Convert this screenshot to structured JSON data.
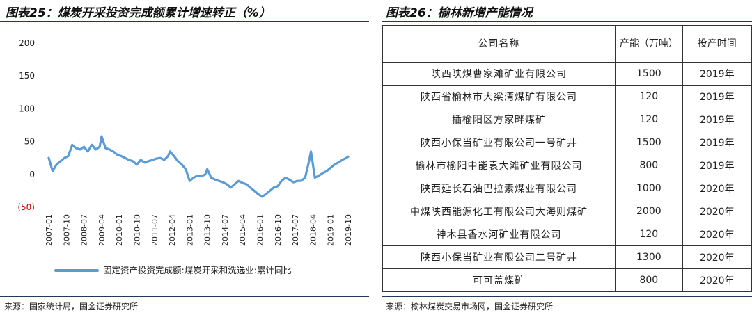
{
  "left_panel": {
    "title": "图表25：煤炭开采投资完成额累计增速转正（%）",
    "source": "来源：国家统计局，国金证券研究所"
  },
  "right_panel": {
    "title": "图表26：榆林新增产能情况",
    "source": "来源：榆林煤炭交易市场网，国金证券研究所",
    "headers": [
      "公司名称",
      "产能（万吨）",
      "投产时间"
    ],
    "rows": [
      {
        "company": "陕西陕煤曹家滩矿业有限公司",
        "capacity": "1500",
        "year": "2019年"
      },
      {
        "company": "陕西省榆林市大梁湾煤矿有限公司",
        "capacity": "120",
        "year": "2019年"
      },
      {
        "company": "插榆阳区方家畔煤矿",
        "capacity": "120",
        "year": "2019年"
      },
      {
        "company": "陕西小保当矿业有限公司一号矿井",
        "capacity": "1500",
        "year": "2019年"
      },
      {
        "company": "榆林市榆阳中能袁大滩矿业有限公司",
        "capacity": "800",
        "year": "2019年"
      },
      {
        "company": "陕西延长石油巴拉素煤业有限公司",
        "capacity": "1000",
        "year": "2020年"
      },
      {
        "company": "中煤陕西能源化工有限公司大海则煤矿",
        "capacity": "2000",
        "year": "2020年"
      },
      {
        "company": "神木县香水河矿业有限公司",
        "capacity": "120",
        "year": "2020年"
      },
      {
        "company": "陕西小保当矿业有限公司二号矿井",
        "capacity": "1300",
        "year": "2020年"
      },
      {
        "company": "可可盖煤矿",
        "capacity": "800",
        "year": "2020年"
      }
    ]
  },
  "chart_data": {
    "type": "line",
    "title": "",
    "xlabel": "",
    "ylabel": "",
    "ylim": [
      -50,
      200
    ],
    "y_ticks": [
      200,
      150,
      100,
      50,
      0,
      -50
    ],
    "y_tick_labels": [
      "200",
      "150",
      "100",
      "50",
      "0",
      "(50)"
    ],
    "x_tick_labels": [
      "2007-01",
      "2007-10",
      "2008-07",
      "2009-04",
      "2010-01",
      "2010-10",
      "2011-07",
      "2012-04",
      "2013-01",
      "2013-10",
      "2014-07",
      "2015-04",
      "2016-01",
      "2016-10",
      "2017-07",
      "2018-04",
      "2019-01",
      "2019-10"
    ],
    "x_start": "2007-01",
    "x_end": "2019-10",
    "grid": false,
    "legend_position": "bottom",
    "negative_label_color": "#c00000",
    "series_color": "#5b9bd5",
    "series": [
      {
        "name": "固定资产投资完成额:煤炭开采和洗选业:累计同比",
        "x": [
          "2007-01",
          "2007-03",
          "2007-05",
          "2007-07",
          "2007-09",
          "2007-11",
          "2008-01",
          "2008-03",
          "2008-05",
          "2008-07",
          "2008-09",
          "2008-11",
          "2009-01",
          "2009-03",
          "2009-04",
          "2009-06",
          "2009-08",
          "2009-10",
          "2009-12",
          "2010-02",
          "2010-04",
          "2010-06",
          "2010-08",
          "2010-10",
          "2010-12",
          "2011-02",
          "2011-04",
          "2011-06",
          "2011-08",
          "2011-10",
          "2011-12",
          "2012-02",
          "2012-03",
          "2012-05",
          "2012-07",
          "2012-09",
          "2012-11",
          "2013-01",
          "2013-03",
          "2013-05",
          "2013-07",
          "2013-09",
          "2013-10",
          "2013-12",
          "2014-02",
          "2014-04",
          "2014-06",
          "2014-08",
          "2014-10",
          "2014-12",
          "2015-02",
          "2015-04",
          "2015-06",
          "2015-08",
          "2015-10",
          "2015-12",
          "2016-02",
          "2016-04",
          "2016-06",
          "2016-08",
          "2016-10",
          "2016-12",
          "2017-02",
          "2017-04",
          "2017-06",
          "2017-08",
          "2017-10",
          "2017-12",
          "2018-02",
          "2018-03",
          "2018-05",
          "2018-07",
          "2018-09",
          "2018-11",
          "2019-01",
          "2019-03",
          "2019-05",
          "2019-07",
          "2019-09",
          "2019-10"
        ],
        "values": [
          25,
          5,
          15,
          20,
          25,
          28,
          45,
          40,
          38,
          42,
          35,
          45,
          38,
          42,
          58,
          40,
          38,
          35,
          30,
          28,
          25,
          22,
          20,
          15,
          22,
          18,
          20,
          22,
          24,
          25,
          22,
          28,
          35,
          28,
          20,
          15,
          8,
          -10,
          -5,
          -2,
          -3,
          0,
          8,
          -5,
          -8,
          -10,
          -12,
          -15,
          -20,
          -15,
          -10,
          -13,
          -15,
          -20,
          -25,
          -30,
          -34,
          -30,
          -25,
          -20,
          -18,
          -10,
          -5,
          -8,
          -12,
          -10,
          -10,
          -5,
          20,
          35,
          -5,
          -2,
          2,
          5,
          10,
          15,
          18,
          22,
          25,
          27
        ]
      }
    ]
  }
}
